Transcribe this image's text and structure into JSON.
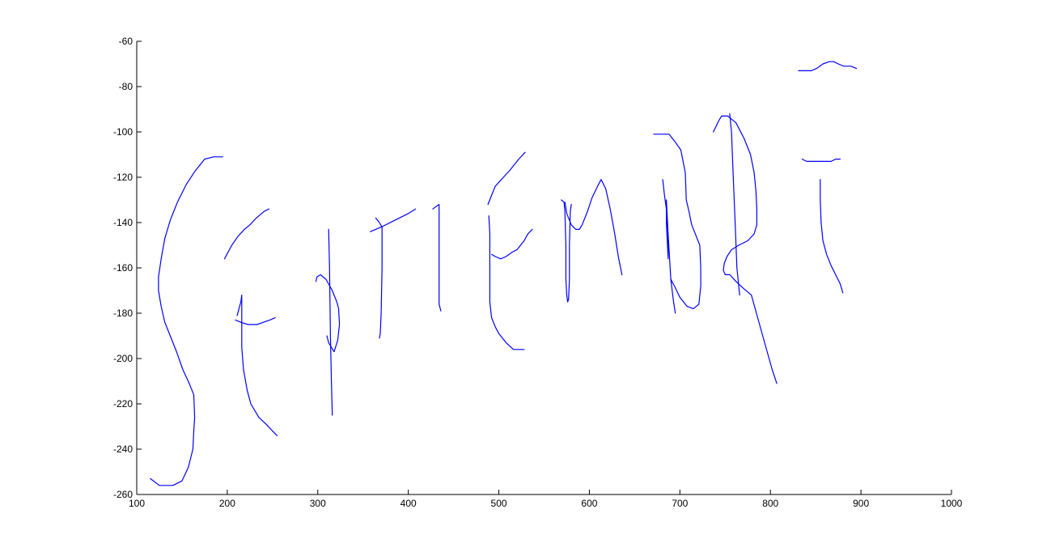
{
  "chart_data": {
    "type": "line",
    "title": "",
    "xlabel": "",
    "ylabel": "",
    "xlim": [
      100,
      1000
    ],
    "ylim": [
      -260,
      -60
    ],
    "grid": false,
    "legend": "none",
    "x_ticks": [
      "100",
      "200",
      "300",
      "400",
      "500",
      "600",
      "700",
      "800",
      "900",
      "1000"
    ],
    "y_ticks": [
      "-60",
      "-80",
      "-100",
      "-120",
      "-140",
      "-160",
      "-180",
      "-200",
      "-220",
      "-240",
      "-260"
    ],
    "x_tick_values": [
      100,
      200,
      300,
      400,
      500,
      600,
      700,
      800,
      900,
      1000
    ],
    "y_tick_values": [
      -60,
      -80,
      -100,
      -120,
      -140,
      -160,
      -180,
      -200,
      -220,
      -240,
      -260
    ],
    "line_color": "#0000ff",
    "axis_color": "#000000",
    "series": [
      {
        "points": [
          [
            195,
            -111
          ],
          [
            185,
            -111
          ],
          [
            175,
            -112
          ],
          [
            165,
            -117
          ],
          [
            155,
            -123
          ],
          [
            145,
            -131
          ],
          [
            137,
            -139
          ],
          [
            131,
            -147
          ],
          [
            127,
            -156
          ],
          [
            124,
            -164
          ],
          [
            124,
            -170
          ],
          [
            127,
            -177
          ],
          [
            131,
            -184
          ],
          [
            137,
            -190
          ],
          [
            144,
            -197
          ],
          [
            151,
            -205
          ],
          [
            158,
            -211
          ],
          [
            163,
            -216
          ],
          [
            164,
            -226
          ],
          [
            163,
            -232
          ],
          [
            162,
            -240
          ],
          [
            157,
            -248
          ],
          [
            150,
            -254
          ],
          [
            140,
            -256
          ],
          [
            125,
            -256
          ],
          [
            115,
            -253
          ]
        ]
      },
      {
        "points": [
          [
            197,
            -156
          ],
          [
            205,
            -150
          ],
          [
            212,
            -146
          ],
          [
            219,
            -143
          ],
          [
            225,
            -141
          ],
          [
            232,
            -138
          ],
          [
            238,
            -136
          ],
          [
            241,
            -135
          ],
          [
            246,
            -134
          ]
        ]
      },
      {
        "points": [
          [
            211,
            -181
          ],
          [
            213,
            -178
          ],
          [
            215,
            -175
          ],
          [
            216,
            -172
          ],
          [
            216,
            -180
          ],
          [
            216,
            -195
          ],
          [
            218,
            -205
          ],
          [
            222,
            -214
          ],
          [
            226,
            -220
          ],
          [
            235,
            -226
          ],
          [
            243,
            -229
          ],
          [
            250,
            -232
          ],
          [
            255,
            -234
          ]
        ]
      },
      {
        "points": [
          [
            209,
            -183
          ],
          [
            215,
            -184
          ],
          [
            223,
            -185
          ],
          [
            233,
            -185
          ],
          [
            240,
            -184
          ],
          [
            247,
            -183
          ],
          [
            253,
            -182
          ]
        ]
      },
      {
        "points": [
          [
            312,
            -143
          ],
          [
            313,
            -160
          ],
          [
            314,
            -190
          ],
          [
            315,
            -210
          ],
          [
            316,
            -225
          ]
        ]
      },
      {
        "points": [
          [
            298,
            -166
          ],
          [
            299,
            -164
          ],
          [
            303,
            -163
          ],
          [
            309,
            -165
          ],
          [
            316,
            -170
          ],
          [
            321,
            -175
          ],
          [
            323,
            -178
          ],
          [
            324,
            -185
          ],
          [
            322,
            -192
          ],
          [
            318,
            -197
          ],
          [
            312,
            -193
          ],
          [
            310,
            -190
          ]
        ]
      },
      {
        "points": [
          [
            358,
            -144
          ],
          [
            370,
            -142
          ],
          [
            385,
            -139
          ],
          [
            400,
            -136
          ],
          [
            408,
            -134
          ]
        ]
      },
      {
        "points": [
          [
            364,
            -138
          ],
          [
            368,
            -140
          ],
          [
            371,
            -142
          ],
          [
            371,
            -160
          ],
          [
            370,
            -180
          ],
          [
            369,
            -189
          ],
          [
            368,
            -191
          ]
        ]
      },
      {
        "points": [
          [
            427,
            -134
          ],
          [
            434,
            -132
          ],
          [
            434,
            -145
          ],
          [
            434,
            -165
          ],
          [
            434,
            -176
          ],
          [
            436,
            -179
          ]
        ]
      },
      {
        "points": [
          [
            488,
            -132
          ],
          [
            492,
            -128
          ],
          [
            496,
            -124
          ],
          [
            505,
            -120
          ],
          [
            512,
            -117
          ],
          [
            522,
            -112
          ],
          [
            529,
            -109
          ]
        ]
      },
      {
        "points": [
          [
            489,
            -137
          ],
          [
            490,
            -145
          ],
          [
            490,
            -160
          ],
          [
            490,
            -175
          ],
          [
            492,
            -182
          ],
          [
            496,
            -186
          ],
          [
            500,
            -189
          ],
          [
            508,
            -193
          ],
          [
            516,
            -196
          ],
          [
            523,
            -196
          ],
          [
            528,
            -196
          ]
        ]
      },
      {
        "points": [
          [
            492,
            -154
          ],
          [
            496,
            -155
          ],
          [
            502,
            -156
          ],
          [
            508,
            -155
          ],
          [
            515,
            -153
          ],
          [
            520,
            -152
          ],
          [
            528,
            -148
          ],
          [
            532,
            -145
          ],
          [
            537,
            -143
          ]
        ]
      },
      {
        "points": [
          [
            569,
            -130
          ],
          [
            572,
            -131
          ],
          [
            573,
            -135
          ],
          [
            574,
            -150
          ],
          [
            574,
            -165
          ],
          [
            575,
            -172
          ],
          [
            576,
            -175
          ],
          [
            577,
            -174
          ],
          [
            578,
            -165
          ],
          [
            578,
            -150
          ],
          [
            579,
            -135
          ],
          [
            580,
            -132
          ]
        ]
      },
      {
        "points": [
          [
            573,
            -131
          ],
          [
            575,
            -136
          ],
          [
            580,
            -141
          ],
          [
            585,
            -143
          ],
          [
            589,
            -143
          ],
          [
            592,
            -141
          ],
          [
            598,
            -135
          ],
          [
            603,
            -129
          ],
          [
            609,
            -124
          ],
          [
            613,
            -121
          ],
          [
            618,
            -125
          ],
          [
            623,
            -134
          ],
          [
            628,
            -145
          ],
          [
            632,
            -155
          ],
          [
            636,
            -163
          ]
        ]
      },
      {
        "points": [
          [
            681,
            -121
          ],
          [
            683,
            -128
          ],
          [
            685,
            -134
          ],
          [
            686,
            -140
          ],
          [
            687,
            -150
          ],
          [
            687,
            -156
          ],
          [
            685,
            -140
          ],
          [
            685,
            -130
          ],
          [
            687,
            -145
          ],
          [
            690,
            -165
          ],
          [
            693,
            -175
          ],
          [
            695,
            -180
          ]
        ]
      },
      {
        "points": [
          [
            671,
            -101
          ],
          [
            680,
            -101
          ],
          [
            688,
            -101
          ],
          [
            694,
            -104
          ],
          [
            701,
            -108
          ],
          [
            706,
            -118
          ],
          [
            707,
            -130
          ],
          [
            710,
            -135
          ],
          [
            713,
            -141
          ],
          [
            718,
            -146
          ],
          [
            722,
            -150
          ],
          [
            723,
            -160
          ],
          [
            723,
            -168
          ],
          [
            721,
            -176
          ],
          [
            715,
            -178
          ],
          [
            708,
            -177
          ],
          [
            700,
            -173
          ],
          [
            694,
            -168
          ],
          [
            690,
            -165
          ]
        ]
      },
      {
        "points": [
          [
            737,
            -100
          ],
          [
            743,
            -95
          ],
          [
            746,
            -93
          ],
          [
            753,
            -93
          ],
          [
            762,
            -96
          ],
          [
            771,
            -103
          ],
          [
            778,
            -110
          ],
          [
            782,
            -118
          ],
          [
            784,
            -126
          ],
          [
            785,
            -134
          ],
          [
            785,
            -141
          ],
          [
            782,
            -145
          ],
          [
            775,
            -148
          ],
          [
            765,
            -150
          ],
          [
            757,
            -152
          ],
          [
            752,
            -155
          ],
          [
            749,
            -158
          ],
          [
            748,
            -161
          ],
          [
            750,
            -163
          ],
          [
            755,
            -163
          ],
          [
            762,
            -166
          ],
          [
            770,
            -169
          ],
          [
            779,
            -172
          ],
          [
            788,
            -185
          ],
          [
            795,
            -195
          ],
          [
            802,
            -205
          ],
          [
            807,
            -211
          ]
        ]
      },
      {
        "points": [
          [
            755,
            -92
          ],
          [
            757,
            -100
          ],
          [
            759,
            -120
          ],
          [
            761,
            -140
          ],
          [
            763,
            -160
          ],
          [
            766,
            -172
          ]
        ]
      },
      {
        "points": [
          [
            831,
            -73
          ],
          [
            838,
            -73
          ],
          [
            845,
            -73
          ],
          [
            851,
            -72
          ],
          [
            858,
            -70
          ],
          [
            865,
            -69
          ],
          [
            870,
            -69
          ],
          [
            875,
            -70
          ],
          [
            881,
            -71
          ],
          [
            889,
            -71
          ],
          [
            895,
            -72
          ]
        ]
      },
      {
        "points": [
          [
            835,
            -112
          ],
          [
            840,
            -113
          ],
          [
            847,
            -113
          ],
          [
            855,
            -113
          ],
          [
            862,
            -113
          ],
          [
            867,
            -113
          ],
          [
            872,
            -112
          ],
          [
            877,
            -112
          ]
        ]
      },
      {
        "points": [
          [
            855,
            -121
          ],
          [
            855,
            -130
          ],
          [
            856,
            -140
          ],
          [
            858,
            -148
          ],
          [
            862,
            -154
          ],
          [
            867,
            -159
          ],
          [
            872,
            -163
          ],
          [
            877,
            -167
          ],
          [
            880,
            -171
          ]
        ]
      }
    ]
  }
}
